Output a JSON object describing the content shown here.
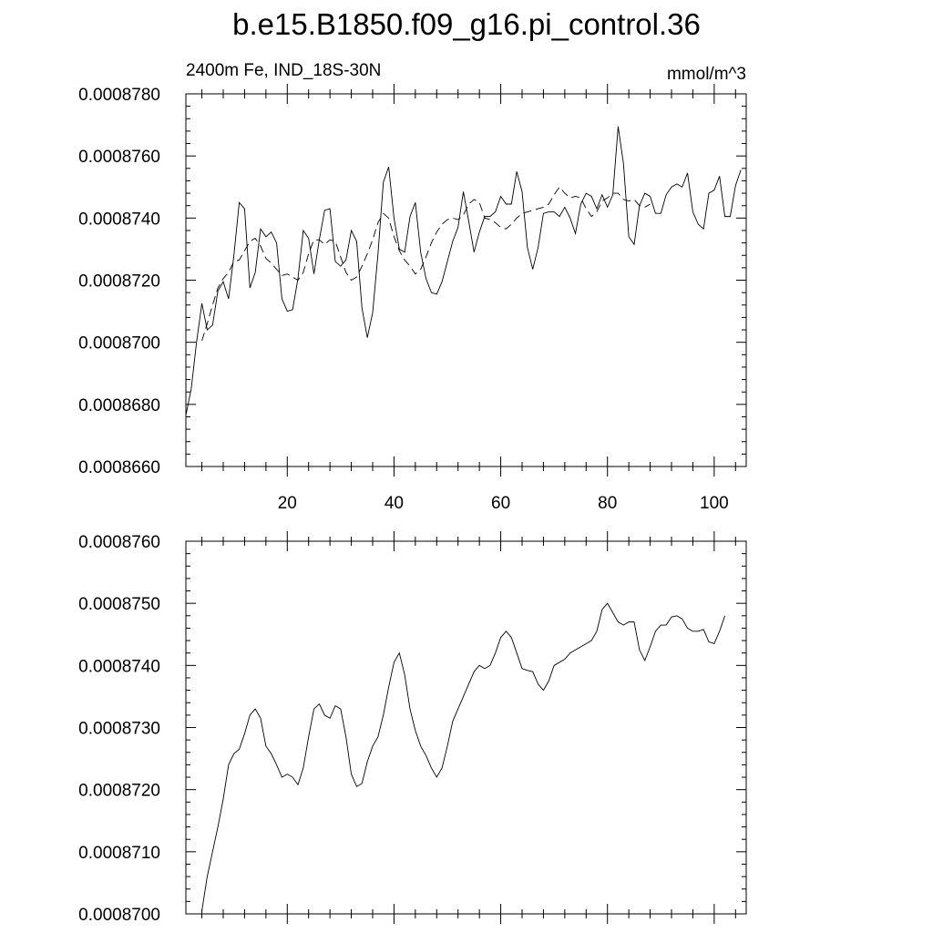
{
  "title": "b.e15.B1850.f09_g16.pi_control.36",
  "chart_data": [
    {
      "type": "line",
      "left_label": "2400m Fe, IND_18S-30N",
      "units": "mmol/m^3",
      "xlim": [
        1,
        106
      ],
      "ylim": [
        0.000866,
        0.000878
      ],
      "x_ticks": [
        20,
        40,
        60,
        80,
        100
      ],
      "y_ticks": [
        "0.0008660",
        "0.0008680",
        "0.0008700",
        "0.0008720",
        "0.0008740",
        "0.0008760",
        "0.0008780"
      ],
      "series": [
        {
          "style": "solid",
          "x_start": 1,
          "values": [
            0.00086765,
            0.0008685,
            0.00087,
            0.00087125,
            0.0008704,
            0.00087055,
            0.00087165,
            0.00087195,
            0.0008714,
            0.0008728,
            0.0008745,
            0.0008743,
            0.00087175,
            0.00087225,
            0.00087365,
            0.0008734,
            0.00087355,
            0.0008732,
            0.0008714,
            0.000871,
            0.00087105,
            0.00087205,
            0.0008736,
            0.00087335,
            0.0008722,
            0.0008733,
            0.00087425,
            0.0008743,
            0.0008726,
            0.00087245,
            0.00087265,
            0.0008736,
            0.00087325,
            0.0008711,
            0.00087015,
            0.00087095,
            0.00087285,
            0.00087515,
            0.00087565,
            0.000874,
            0.000873,
            0.0008729,
            0.00087405,
            0.0008745,
            0.0008729,
            0.00087205,
            0.0008716,
            0.00087155,
            0.00087195,
            0.0008726,
            0.00087325,
            0.0008737,
            0.00087485,
            0.0008739,
            0.0008729,
            0.00087355,
            0.00087405,
            0.00087405,
            0.0008742,
            0.0008747,
            0.00087445,
            0.00087445,
            0.0008755,
            0.00087485,
            0.00087305,
            0.00087235,
            0.00087305,
            0.00087415,
            0.0008742,
            0.0008742,
            0.00087405,
            0.00087435,
            0.000874,
            0.0008735,
            0.00087445,
            0.0008748,
            0.0008747,
            0.0008743,
            0.00087475,
            0.00087435,
            0.00087475,
            0.00087695,
            0.00087575,
            0.0008734,
            0.00087315,
            0.0008744,
            0.0008748,
            0.0008747,
            0.00087415,
            0.00087415,
            0.00087475,
            0.000875,
            0.0008751,
            0.000875,
            0.00087545,
            0.0008742,
            0.0008738,
            0.00087365,
            0.0008748,
            0.0008749,
            0.00087535,
            0.00087405,
            0.00087405,
            0.00087505,
            0.00087555
          ]
        },
        {
          "style": "dashed",
          "x_start": 4,
          "values": [
            0.00087005,
            0.0008706,
            0.0008712,
            0.00087175,
            0.00087205,
            0.00087225,
            0.0008726,
            0.00087265,
            0.00087295,
            0.00087325,
            0.00087335,
            0.0008731,
            0.0008727,
            0.00087255,
            0.00087235,
            0.00087215,
            0.0008722,
            0.0008721,
            0.000872,
            0.00087225,
            0.00087285,
            0.0008733,
            0.0008733,
            0.00087315,
            0.0008733,
            0.00087325,
            0.00087275,
            0.00087225,
            0.000872,
            0.0008721,
            0.00087245,
            0.00087285,
            0.0008733,
            0.00087385,
            0.00087415,
            0.000874,
            0.0008734,
            0.00087295,
            0.00087265,
            0.00087245,
            0.0008722,
            0.00087235,
            0.00087275,
            0.0008732,
            0.00087355,
            0.0008738,
            0.00087395,
            0.000874,
            0.00087395,
            0.0008741,
            0.00087445,
            0.0008746,
            0.0008745,
            0.000874,
            0.00087395,
            0.00087385,
            0.0008737,
            0.00087365,
            0.0008738,
            0.000874,
            0.00087415,
            0.0008742,
            0.00087425,
            0.0008743,
            0.00087435,
            0.00087445,
            0.00087475,
            0.000875,
            0.0008748,
            0.00087465,
            0.0008747,
            0.00087465,
            0.0008743,
            0.00087405,
            0.0008742,
            0.00087455,
            0.00087465,
            0.0008748,
            0.0008748,
            0.0008746,
            0.00087455,
            0.0008746,
            0.0008744,
            0.00087435,
            0.00087445
          ]
        }
      ]
    },
    {
      "type": "line",
      "xlim": [
        1,
        106
      ],
      "ylim": [
        0.00087,
        0.000876
      ],
      "y_ticks": [
        "0.0008700",
        "0.0008710",
        "0.0008720",
        "0.0008730",
        "0.0008740",
        "0.0008750",
        "0.0008760"
      ],
      "series": [
        {
          "style": "solid",
          "x_start": 4,
          "values": [
            0.00087005,
            0.0008706,
            0.000871,
            0.0008714,
            0.00087185,
            0.0008724,
            0.00087258,
            0.00087265,
            0.0008729,
            0.0008732,
            0.0008733,
            0.00087315,
            0.0008727,
            0.00087258,
            0.0008724,
            0.0008722,
            0.00087225,
            0.0008722,
            0.00087208,
            0.00087235,
            0.00087285,
            0.0008733,
            0.00087338,
            0.0008732,
            0.00087315,
            0.00087335,
            0.0008733,
            0.00087285,
            0.00087225,
            0.00087205,
            0.0008721,
            0.00087245,
            0.0008727,
            0.00087285,
            0.0008732,
            0.00087365,
            0.00087405,
            0.0008742,
            0.00087385,
            0.0008733,
            0.00087295,
            0.0008727,
            0.00087255,
            0.00087235,
            0.0008722,
            0.00087235,
            0.0008727,
            0.0008731,
            0.0008733,
            0.0008735,
            0.0008737,
            0.0008739,
            0.000874,
            0.00087395,
            0.000874,
            0.0008742,
            0.00087445,
            0.00087455,
            0.00087445,
            0.0008742,
            0.00087395,
            0.00087392,
            0.0008739,
            0.0008737,
            0.0008736,
            0.00087375,
            0.000874,
            0.00087405,
            0.0008741,
            0.0008742,
            0.00087425,
            0.0008743,
            0.00087435,
            0.0008744,
            0.00087455,
            0.0008749,
            0.000875,
            0.00087485,
            0.0008747,
            0.00087465,
            0.0008747,
            0.0008747,
            0.00087425,
            0.00087408,
            0.0008743,
            0.00087455,
            0.00087465,
            0.00087465,
            0.00087478,
            0.0008748,
            0.00087475,
            0.0008746,
            0.00087455,
            0.00087455,
            0.00087458,
            0.00087438,
            0.00087435,
            0.00087455,
            0.0008748
          ]
        }
      ]
    }
  ]
}
